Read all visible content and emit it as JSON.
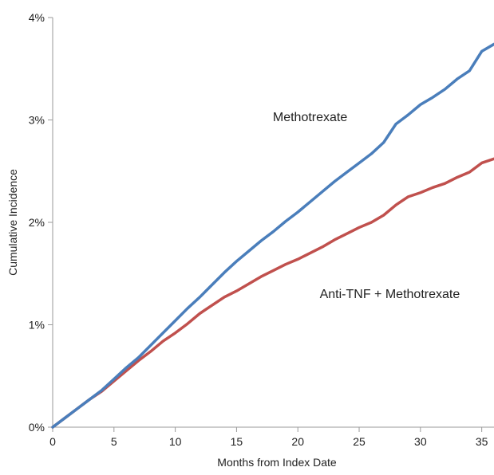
{
  "chart_data": {
    "type": "line",
    "xlabel": "Months from Index Date",
    "ylabel": "Cumulative Incidence",
    "xlim": [
      0,
      36
    ],
    "ylim": [
      0,
      4
    ],
    "xticks": [
      0,
      5,
      10,
      15,
      20,
      25,
      30,
      35
    ],
    "yticks": [
      0,
      1,
      2,
      3,
      4
    ],
    "ytick_labels": [
      "0%",
      "1%",
      "2%",
      "3%",
      "4%"
    ],
    "grid": false,
    "series": [
      {
        "name": "Methotrexate",
        "color": "#4a7ebb",
        "x": [
          0,
          1,
          2,
          3,
          4,
          5,
          6,
          7,
          8,
          9,
          10,
          11,
          12,
          13,
          14,
          15,
          16,
          17,
          18,
          19,
          20,
          21,
          22,
          23,
          24,
          25,
          26,
          27,
          28,
          29,
          30,
          31,
          32,
          33,
          34,
          35,
          36
        ],
        "values": [
          0,
          0.09,
          0.18,
          0.27,
          0.36,
          0.47,
          0.58,
          0.68,
          0.8,
          0.92,
          1.04,
          1.16,
          1.27,
          1.39,
          1.51,
          1.62,
          1.72,
          1.82,
          1.91,
          2.01,
          2.1,
          2.2,
          2.3,
          2.4,
          2.49,
          2.58,
          2.67,
          2.78,
          2.96,
          3.05,
          3.15,
          3.22,
          3.3,
          3.4,
          3.48,
          3.67,
          3.74
        ]
      },
      {
        "name": "Anti-TNF + Methotrexate",
        "color": "#c0504d",
        "x": [
          0,
          1,
          2,
          3,
          4,
          5,
          6,
          7,
          8,
          9,
          10,
          11,
          12,
          13,
          14,
          15,
          16,
          17,
          18,
          19,
          20,
          21,
          22,
          23,
          24,
          25,
          26,
          27,
          28,
          29,
          30,
          31,
          32,
          33,
          34,
          35,
          36
        ],
        "values": [
          0,
          0.09,
          0.18,
          0.27,
          0.35,
          0.45,
          0.55,
          0.65,
          0.74,
          0.84,
          0.92,
          1.01,
          1.11,
          1.19,
          1.27,
          1.33,
          1.4,
          1.47,
          1.53,
          1.59,
          1.64,
          1.7,
          1.76,
          1.83,
          1.89,
          1.95,
          2.0,
          2.07,
          2.17,
          2.25,
          2.29,
          2.34,
          2.38,
          2.44,
          2.49,
          2.58,
          2.62
        ]
      }
    ],
    "annotations": [
      {
        "text": "Methotrexate",
        "x": 21,
        "y": 2.99
      },
      {
        "text": "Anti-TNF + Methotrexate",
        "x": 27.5,
        "y": 1.26
      }
    ]
  }
}
